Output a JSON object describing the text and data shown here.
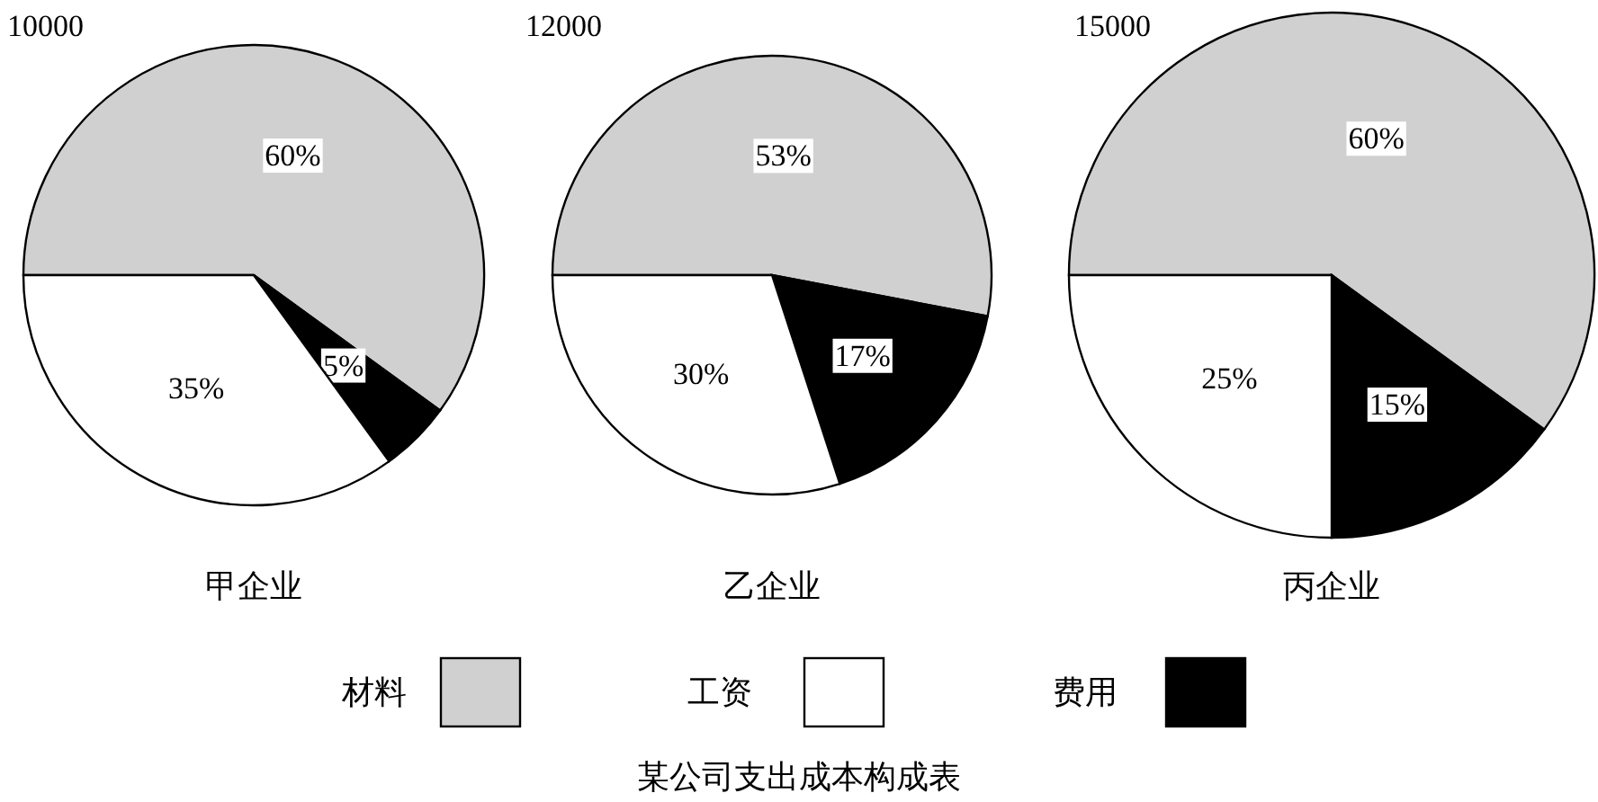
{
  "chart_data": [
    {
      "type": "pie",
      "title": "10000",
      "xlabel": "甲企业",
      "categories": [
        "材料",
        "工资",
        "费用"
      ],
      "values": [
        60,
        35,
        5
      ],
      "value_labels": [
        "60%",
        "35%",
        "5%"
      ],
      "colors": [
        "#d0d0d0",
        "#ffffff",
        "#000000"
      ],
      "legend": "bottom",
      "annotations": [
        "某公司支出成本构成表"
      ]
    },
    {
      "type": "pie",
      "title": "12000",
      "xlabel": "乙企业",
      "categories": [
        null,
        null,
        null
      ],
      "values": [
        53,
        30,
        17
      ],
      "value_labels": [
        "53%",
        "30%",
        "17%"
      ],
      "colors": [
        "#d0d0d0",
        "#ffffff",
        "#000000"
      ]
    },
    {
      "type": "pie",
      "title": "15000",
      "xlabel": "丙企业",
      "categories": [
        null,
        null,
        null
      ],
      "values": [
        60,
        25,
        15
      ],
      "value_labels": [
        "60%",
        "25%",
        "15%"
      ],
      "colors": [
        "#d0d0d0",
        "#ffffff",
        "#000000"
      ]
    }
  ]
}
